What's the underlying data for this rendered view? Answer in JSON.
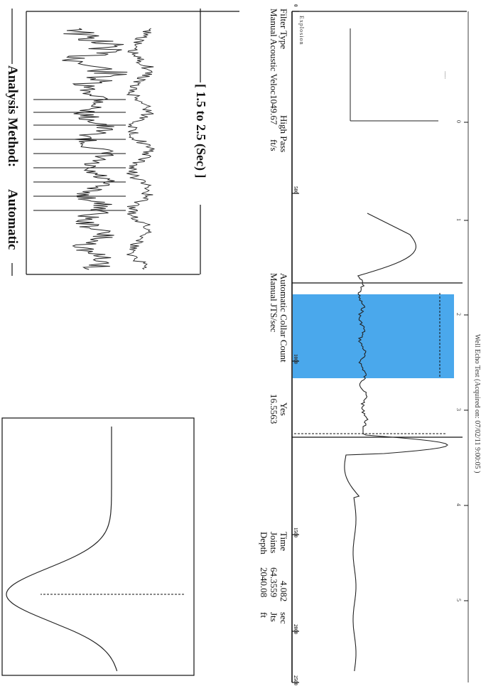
{
  "document": {
    "header_text": "Well Echo Test (Acquired on: 07/02/11 9:00:05 )",
    "explosion_label": "Explosion",
    "filter": {
      "label": "Filter Type",
      "value": "High Pass"
    },
    "velocity": {
      "label": "Manual Acoustic Veloc1049.67",
      "unit": "ft/s"
    },
    "collar": {
      "label": "Automatic Collar Count",
      "value": "Yes"
    },
    "jts": {
      "label": "Manual JTS/sec",
      "value": "16.5563"
    },
    "time": {
      "label": "Time",
      "value": "4.082",
      "unit": "sec"
    },
    "joints": {
      "label": "Joints",
      "value": "64.3559",
      "unit": "Jts"
    },
    "depth": {
      "label": "Depth",
      "value": "2040.08",
      "unit": "ft"
    },
    "window_label": "[ 1.5  to  2.5 (Sec) ]",
    "method": {
      "label": "Analysis Method:",
      "value": "Automatic"
    },
    "depth_ticks": [
      "0",
      "500",
      "1000",
      "1500",
      "2000",
      "2500"
    ],
    "time_ticks": [
      "0",
      "1",
      "2",
      "3",
      "4",
      "5"
    ],
    "colors": {
      "highlight": "#4aa8ec",
      "trace": "#222222"
    }
  }
}
